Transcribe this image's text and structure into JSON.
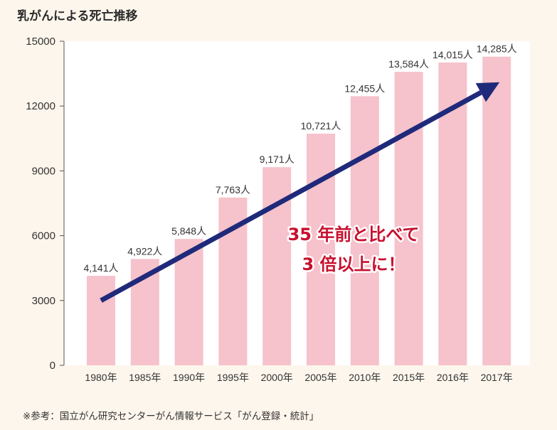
{
  "title": "乳がんによる死亡推移",
  "footnote": "※参考：国立がん研究センターがん情報サービス「がん登録・統計」",
  "callout": {
    "line1": "35 年前と比べて",
    "line2": "3 倍以上に！"
  },
  "colors": {
    "bar": "#f6c2cb",
    "arrow": "#1f2a7a",
    "callout": "#c8102e",
    "background": "#fdf6ec",
    "plot_background": "#ffffff"
  },
  "chart_data": {
    "type": "bar",
    "categories": [
      "1980年",
      "1985年",
      "1990年",
      "1995年",
      "2000年",
      "2005年",
      "2010年",
      "2015年",
      "2016年",
      "2017年"
    ],
    "values": [
      4141,
      4922,
      5848,
      7763,
      9171,
      10721,
      12455,
      13584,
      14015,
      14285
    ],
    "data_labels": [
      "4,141人",
      "4,922人",
      "5,848人",
      "7,763人",
      "9,171人",
      "10,721人",
      "12,455人",
      "13,584人",
      "14,015人",
      "14,285人"
    ],
    "yticks": [
      0,
      3000,
      6000,
      9000,
      12000,
      15000
    ],
    "ytick_labels": [
      "0",
      "3000",
      "6000",
      "9000",
      "12000",
      "15000"
    ],
    "ylim": [
      0,
      15000
    ],
    "grid": false,
    "legend": "none",
    "trend_arrow": {
      "from_category": "1980年",
      "to_category": "2017年",
      "from_value": 3000,
      "to_value": 13100
    }
  }
}
